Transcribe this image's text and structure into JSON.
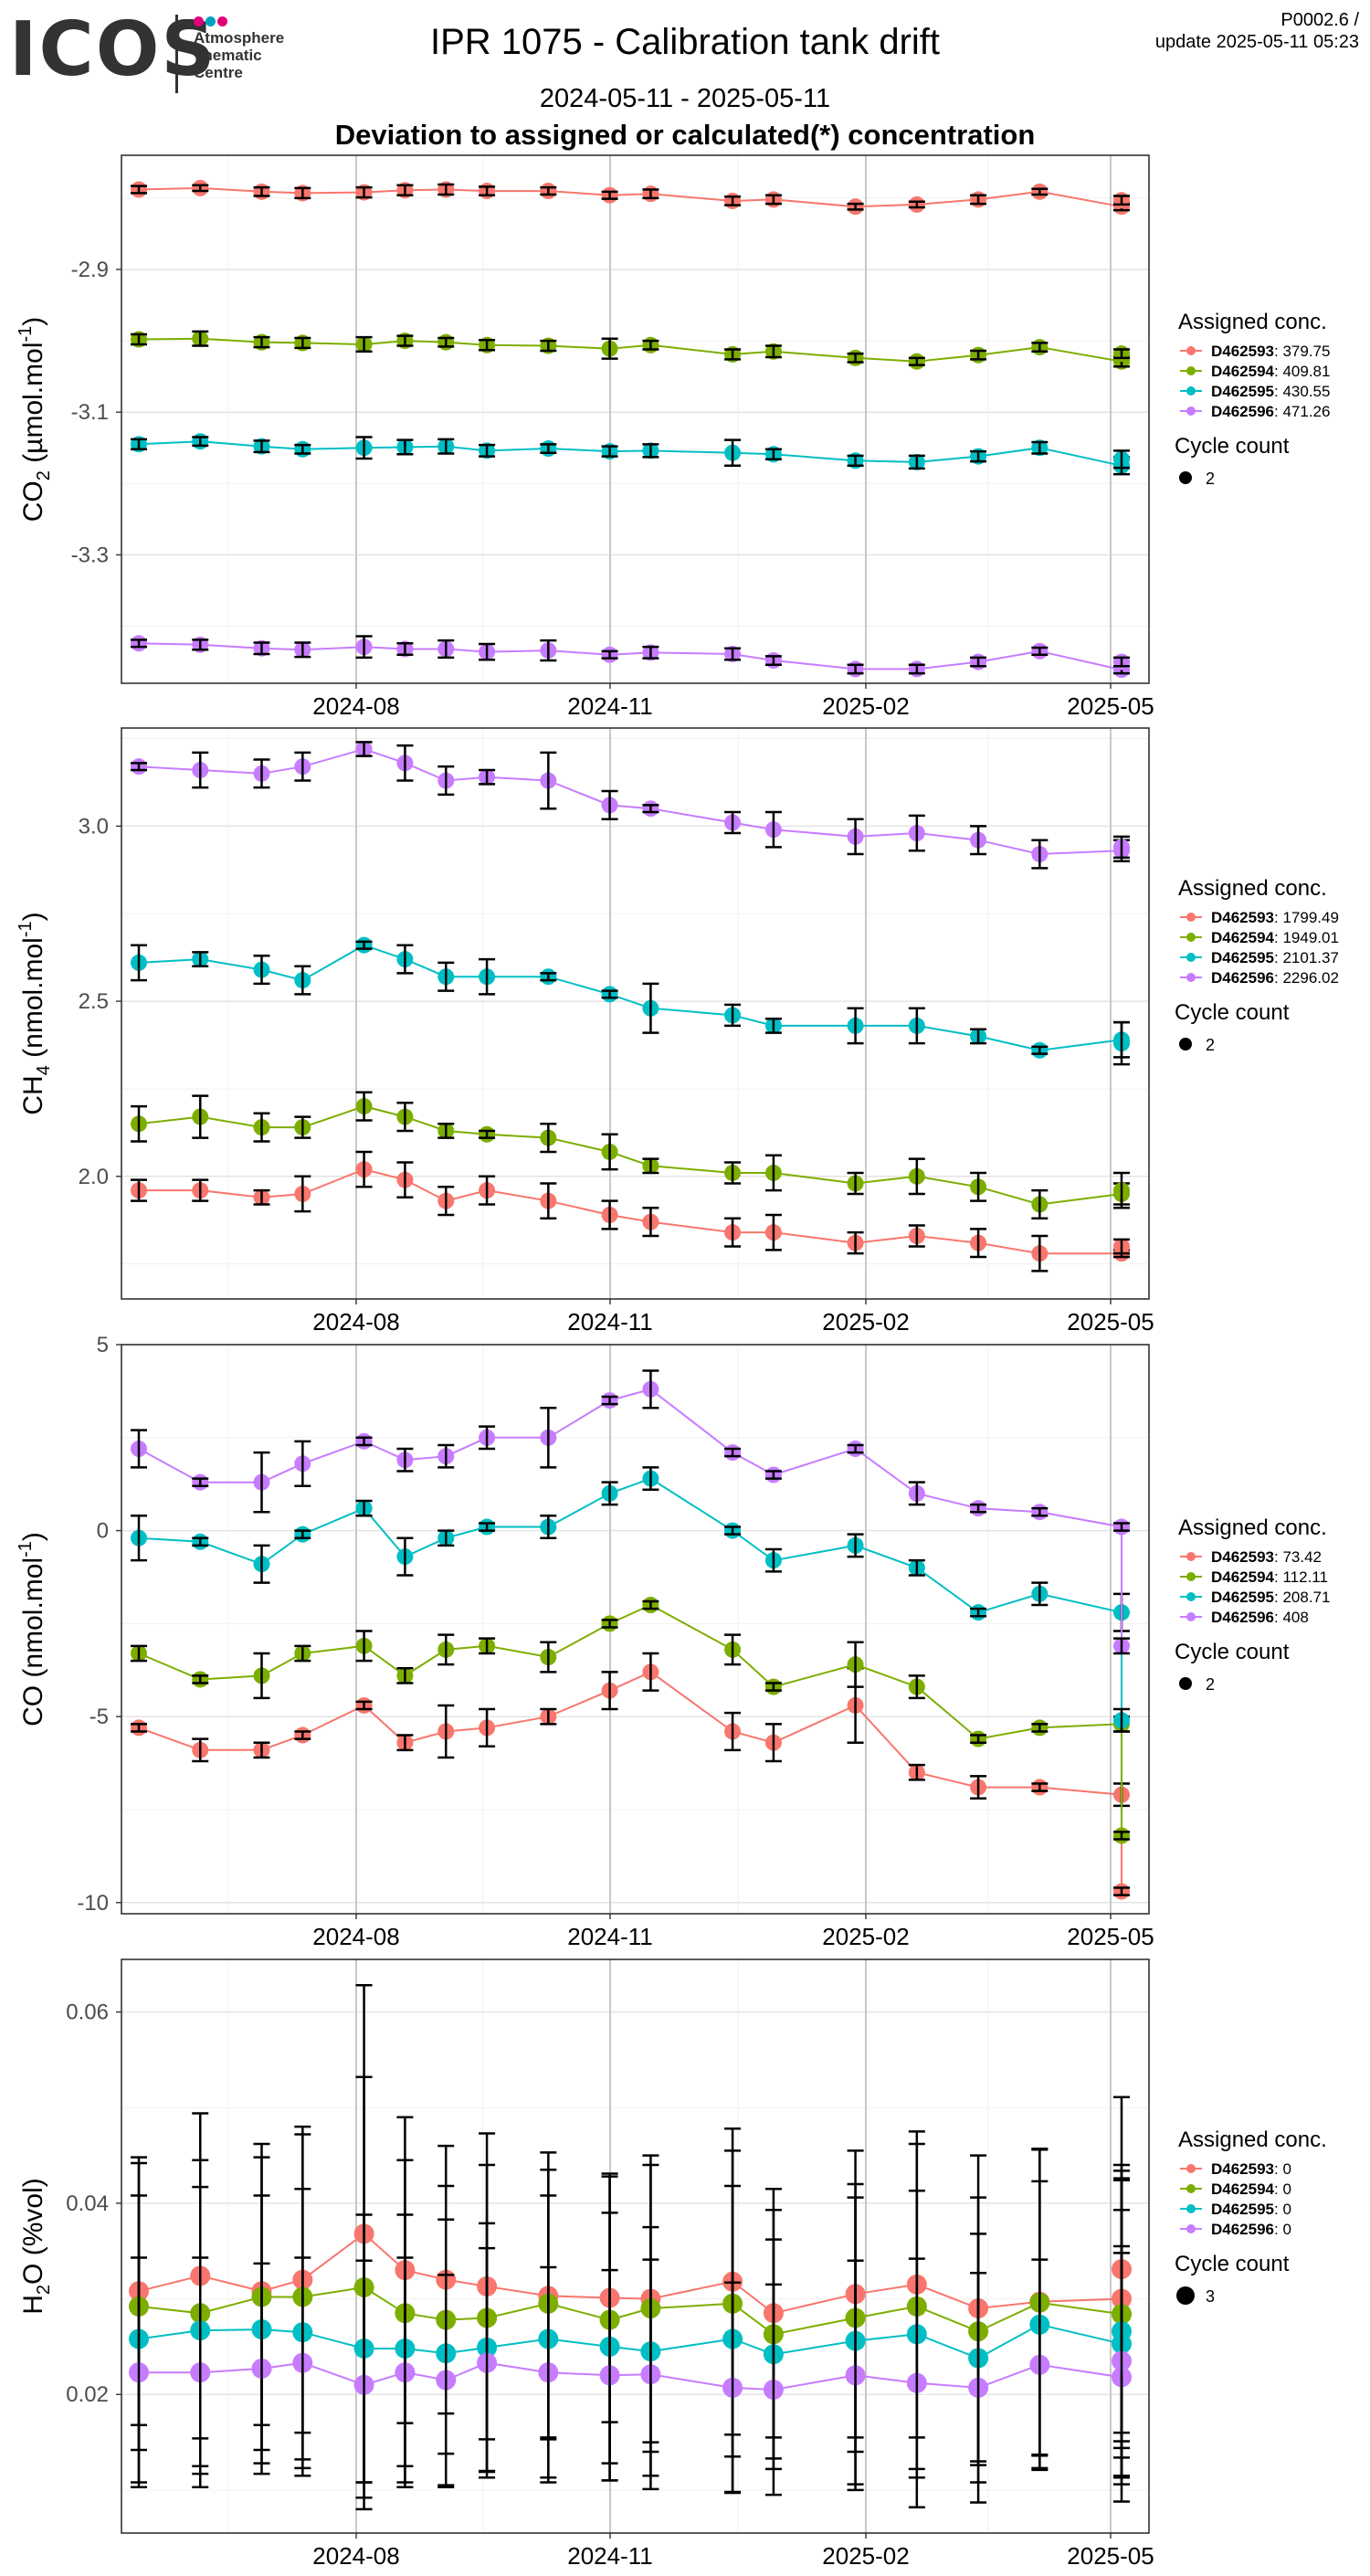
{
  "header": {
    "logo_text": "ICOS",
    "logo_subtitle": "Atmosphere\nThematic\nCentre",
    "logo_dot_colors": [
      "#e0007a",
      "#00a0c6",
      "#e0007a"
    ],
    "title": "IPR 1075 - Calibration tank drift",
    "date_range": "2024-05-11 - 2025-05-11",
    "section_title": "Deviation to assigned or calculated(*) concentration",
    "code_line1": "P0002.6 /",
    "code_line2": "update  2025-05-11 05:23"
  },
  "series_colors": [
    "#F8766D",
    "#7CAE00",
    "#00BFC4",
    "#C77CFF"
  ],
  "chart_data": [
    {
      "type": "line",
      "ylabel_main": "CO",
      "ylabel_sub": "2",
      "ylabel_unit": " (µmol.mol",
      "ylabel_sup": "-1",
      "ylabel_end": ")",
      "x_ticks": [
        "2024-08",
        "2024-11",
        "2025-02",
        "2025-05"
      ],
      "y_ticks": [
        -3.3,
        -3.1,
        -2.9
      ],
      "y_tick_labels": [
        "-3.3",
        "-3.1",
        "-2.9"
      ],
      "ylim": [
        -3.48,
        -2.74
      ],
      "grid": true,
      "legend_position": "right",
      "legend": {
        "title": "Assigned conc.",
        "entries": [
          {
            "id": "D462593",
            "value": ": 379.75"
          },
          {
            "id": "D462594",
            "value": ": 409.81"
          },
          {
            "id": "D462595",
            "value": ": 430.55"
          },
          {
            "id": "D462596",
            "value": ": 471.26"
          }
        ],
        "size_title": "Cycle count",
        "size_value": "2"
      },
      "x": [
        0.0,
        0.6,
        1.2,
        1.6,
        2.2,
        2.6,
        3.0,
        3.4,
        4.0,
        4.6,
        5.0,
        5.8,
        6.2,
        7.0,
        7.6,
        8.2,
        8.8,
        9.6,
        9.6
      ],
      "series": [
        {
          "id": "D462593",
          "values": [
            -2.788,
            -2.786,
            -2.791,
            -2.793,
            -2.792,
            -2.789,
            -2.788,
            -2.79,
            -2.79,
            -2.796,
            -2.794,
            -2.804,
            -2.802,
            -2.812,
            -2.809,
            -2.802,
            -2.791,
            -2.812,
            -2.803
          ],
          "errors": [
            0.005,
            0.004,
            0.006,
            0.007,
            0.007,
            0.007,
            0.007,
            0.006,
            0.005,
            0.005,
            0.006,
            0.006,
            0.006,
            0.004,
            0.004,
            0.006,
            0.004,
            0.005,
            0.006
          ]
        },
        {
          "id": "D462594",
          "values": [
            -2.998,
            -2.997,
            -3.002,
            -3.003,
            -3.005,
            -3.0,
            -3.002,
            -3.006,
            -3.007,
            -3.011,
            -3.006,
            -3.019,
            -3.015,
            -3.024,
            -3.029,
            -3.02,
            -3.009,
            -3.029,
            -3.018
          ],
          "errors": [
            0.007,
            0.01,
            0.007,
            0.007,
            0.01,
            0.007,
            0.006,
            0.007,
            0.007,
            0.014,
            0.006,
            0.007,
            0.008,
            0.006,
            0.005,
            0.006,
            0.006,
            0.007,
            0.006
          ]
        },
        {
          "id": "D462595",
          "values": [
            -3.145,
            -3.141,
            -3.148,
            -3.152,
            -3.15,
            -3.149,
            -3.148,
            -3.154,
            -3.151,
            -3.155,
            -3.154,
            -3.157,
            -3.159,
            -3.168,
            -3.17,
            -3.162,
            -3.15,
            -3.175,
            -3.166
          ],
          "errors": [
            0.007,
            0.006,
            0.008,
            0.006,
            0.015,
            0.01,
            0.01,
            0.008,
            0.006,
            0.007,
            0.009,
            0.018,
            0.007,
            0.007,
            0.009,
            0.007,
            0.008,
            0.012,
            0.012
          ]
        },
        {
          "id": "D462596",
          "values": [
            -3.424,
            -3.426,
            -3.431,
            -3.433,
            -3.429,
            -3.432,
            -3.432,
            -3.436,
            -3.434,
            -3.44,
            -3.437,
            -3.439,
            -3.448,
            -3.46,
            -3.46,
            -3.45,
            -3.435,
            -3.461,
            -3.45
          ],
          "errors": [
            0.005,
            0.007,
            0.008,
            0.01,
            0.015,
            0.008,
            0.012,
            0.011,
            0.014,
            0.005,
            0.008,
            0.008,
            0.006,
            0.006,
            0.006,
            0.006,
            0.005,
            0.005,
            0.006
          ]
        }
      ]
    },
    {
      "type": "line",
      "ylabel_main": "CH",
      "ylabel_sub": "4",
      "ylabel_unit": " (nmol.mol",
      "ylabel_sup": "-1",
      "ylabel_end": ")",
      "x_ticks": [
        "2024-08",
        "2024-11",
        "2025-02",
        "2025-05"
      ],
      "y_ticks": [
        2.0,
        2.5,
        3.0
      ],
      "y_tick_labels": [
        "2.0",
        "2.5",
        "3.0"
      ],
      "ylim": [
        1.65,
        3.28
      ],
      "grid": true,
      "legend_position": "right",
      "legend": {
        "title": "Assigned conc.",
        "entries": [
          {
            "id": "D462593",
            "value": ": 1799.49"
          },
          {
            "id": "D462594",
            "value": ": 1949.01"
          },
          {
            "id": "D462595",
            "value": ": 2101.37"
          },
          {
            "id": "D462596",
            "value": ": 2296.02"
          }
        ],
        "size_title": "Cycle count",
        "size_value": "2"
      },
      "x": [
        0.0,
        0.6,
        1.2,
        1.6,
        2.2,
        2.6,
        3.0,
        3.4,
        4.0,
        4.6,
        5.0,
        5.8,
        6.2,
        7.0,
        7.6,
        8.2,
        8.8,
        9.6,
        9.6
      ],
      "series": [
        {
          "id": "D462593",
          "values": [
            1.96,
            1.96,
            1.94,
            1.95,
            2.02,
            1.99,
            1.93,
            1.96,
            1.93,
            1.89,
            1.87,
            1.84,
            1.84,
            1.81,
            1.83,
            1.81,
            1.78,
            1.78,
            1.8
          ],
          "errors": [
            0.03,
            0.03,
            0.02,
            0.05,
            0.05,
            0.05,
            0.04,
            0.04,
            0.05,
            0.04,
            0.04,
            0.04,
            0.05,
            0.03,
            0.03,
            0.04,
            0.05,
            0.01,
            0.02
          ]
        },
        {
          "id": "D462594",
          "values": [
            2.15,
            2.17,
            2.14,
            2.14,
            2.2,
            2.17,
            2.13,
            2.12,
            2.11,
            2.07,
            2.03,
            2.01,
            2.01,
            1.98,
            2.0,
            1.97,
            1.92,
            1.95,
            1.96
          ],
          "errors": [
            0.05,
            0.06,
            0.04,
            0.03,
            0.04,
            0.04,
            0.02,
            0.01,
            0.04,
            0.05,
            0.02,
            0.03,
            0.05,
            0.03,
            0.05,
            0.04,
            0.04,
            0.03,
            0.05
          ]
        },
        {
          "id": "D462595",
          "values": [
            2.61,
            2.62,
            2.59,
            2.56,
            2.66,
            2.62,
            2.57,
            2.57,
            2.57,
            2.52,
            2.48,
            2.46,
            2.43,
            2.43,
            2.43,
            2.4,
            2.36,
            2.39,
            2.38
          ],
          "errors": [
            0.05,
            0.02,
            0.04,
            0.04,
            0.01,
            0.04,
            0.04,
            0.05,
            0.01,
            0.01,
            0.07,
            0.03,
            0.02,
            0.05,
            0.05,
            0.02,
            0.01,
            0.05,
            0.06
          ]
        },
        {
          "id": "D462596",
          "values": [
            3.17,
            3.16,
            3.15,
            3.17,
            3.22,
            3.18,
            3.13,
            3.14,
            3.13,
            3.06,
            3.05,
            3.01,
            2.99,
            2.97,
            2.98,
            2.96,
            2.92,
            2.93,
            2.94
          ],
          "errors": [
            0.01,
            0.05,
            0.04,
            0.04,
            0.02,
            0.05,
            0.04,
            0.02,
            0.08,
            0.04,
            0.01,
            0.03,
            0.05,
            0.05,
            0.05,
            0.04,
            0.04,
            0.03,
            0.03
          ]
        }
      ]
    },
    {
      "type": "line",
      "ylabel_main": "CO",
      "ylabel_sub": "",
      "ylabel_unit": " (nmol.mol",
      "ylabel_sup": "-1",
      "ylabel_end": ")",
      "x_ticks": [
        "2024-08",
        "2024-11",
        "2025-02",
        "2025-05"
      ],
      "y_ticks": [
        -10,
        -5,
        0,
        5
      ],
      "y_tick_labels": [
        "-10",
        "-5",
        "0",
        "5"
      ],
      "ylim": [
        -10.3,
        5.0
      ],
      "grid": true,
      "legend_position": "right",
      "legend": {
        "title": "Assigned conc.",
        "entries": [
          {
            "id": "D462593",
            "value": ": 73.42"
          },
          {
            "id": "D462594",
            "value": ": 112.11"
          },
          {
            "id": "D462595",
            "value": ": 208.71"
          },
          {
            "id": "D462596",
            "value": ": 408"
          }
        ],
        "size_title": "Cycle count",
        "size_value": "2"
      },
      "x": [
        0.0,
        0.6,
        1.2,
        1.6,
        2.2,
        2.6,
        3.0,
        3.4,
        4.0,
        4.6,
        5.0,
        5.8,
        6.2,
        7.0,
        7.6,
        8.2,
        8.8,
        9.6,
        9.6
      ],
      "series": [
        {
          "id": "D462593",
          "values": [
            -5.3,
            -5.9,
            -5.9,
            -5.5,
            -4.7,
            -5.7,
            -5.4,
            -5.3,
            -5.0,
            -4.3,
            -3.8,
            -5.4,
            -5.7,
            -4.7,
            -6.5,
            -6.9,
            -6.9,
            -7.1,
            -9.7
          ],
          "errors": [
            0.1,
            0.3,
            0.2,
            0.1,
            0.1,
            0.2,
            0.7,
            0.5,
            0.2,
            0.5,
            0.5,
            0.5,
            0.5,
            1.0,
            0.2,
            0.3,
            0.1,
            0.3,
            0.1
          ]
        },
        {
          "id": "D462594",
          "values": [
            -3.3,
            -4.0,
            -3.9,
            -3.3,
            -3.1,
            -3.9,
            -3.2,
            -3.1,
            -3.4,
            -2.5,
            -2.0,
            -3.2,
            -4.2,
            -3.6,
            -4.2,
            -5.6,
            -5.3,
            -5.2,
            -8.2
          ],
          "errors": [
            0.2,
            0.1,
            0.6,
            0.2,
            0.4,
            0.2,
            0.4,
            0.2,
            0.4,
            0.1,
            0.1,
            0.4,
            0.1,
            0.6,
            0.3,
            0.1,
            0.1,
            0.2,
            0.1
          ]
        },
        {
          "id": "D462595",
          "values": [
            -0.2,
            -0.3,
            -0.9,
            -0.1,
            0.6,
            -0.7,
            -0.2,
            0.1,
            0.1,
            1.0,
            1.4,
            0.0,
            -0.8,
            -0.4,
            -1.0,
            -2.2,
            -1.7,
            -2.2,
            -5.1
          ],
          "errors": [
            0.6,
            0.1,
            0.5,
            0.1,
            0.2,
            0.5,
            0.2,
            0.1,
            0.3,
            0.3,
            0.3,
            0.1,
            0.3,
            0.3,
            0.2,
            0.1,
            0.3,
            0.5,
            0.3
          ]
        },
        {
          "id": "D462596",
          "values": [
            2.2,
            1.3,
            1.3,
            1.8,
            2.4,
            1.9,
            2.0,
            2.5,
            2.5,
            3.5,
            3.8,
            2.1,
            1.5,
            2.2,
            1.0,
            0.6,
            0.5,
            0.1,
            -3.1
          ],
          "errors": [
            0.5,
            0.1,
            0.8,
            0.6,
            0.1,
            0.3,
            0.3,
            0.3,
            0.8,
            0.1,
            0.5,
            0.1,
            0.1,
            0.1,
            0.3,
            0.1,
            0.1,
            0.1,
            0.2
          ]
        }
      ]
    },
    {
      "type": "line",
      "ylabel_main": "H",
      "ylabel_sub": "2",
      "ylabel_unit": "O (%vol)",
      "ylabel_sup": "",
      "ylabel_end": "",
      "x_ticks": [
        "2024-08",
        "2024-11",
        "2025-02",
        "2025-05"
      ],
      "y_ticks": [
        0.02,
        0.04,
        0.06
      ],
      "y_tick_labels": [
        "0.02",
        "0.04",
        "0.06"
      ],
      "ylim": [
        0.0055,
        0.0655
      ],
      "grid": true,
      "legend_position": "right",
      "legend": {
        "title": "Assigned conc.",
        "entries": [
          {
            "id": "D462593",
            "value": ": 0"
          },
          {
            "id": "D462594",
            "value": ": 0"
          },
          {
            "id": "D462595",
            "value": ": 0"
          },
          {
            "id": "D462596",
            "value": ": 0"
          }
        ],
        "size_title": "Cycle count",
        "size_value": "3"
      },
      "x": [
        0.0,
        0.6,
        1.2,
        1.6,
        2.2,
        2.6,
        3.0,
        3.4,
        4.0,
        4.6,
        5.0,
        5.8,
        6.2,
        7.0,
        7.6,
        8.2,
        8.8,
        9.6,
        9.6
      ],
      "series": [
        {
          "id": "D462593",
          "values": [
            0.0308,
            0.0324,
            0.0308,
            0.032,
            0.0368,
            0.033,
            0.032,
            0.0313,
            0.0303,
            0.0301,
            0.03,
            0.0318,
            0.0285,
            0.0305,
            0.0315,
            0.029,
            0.0297,
            0.03,
            0.0331
          ],
          "errors": [
            0.014,
            0.017,
            0.014,
            0.016,
            0.026,
            0.016,
            0.014,
            0.016,
            0.015,
            0.013,
            0.015,
            0.016,
            0.013,
            0.015,
            0.016,
            0.016,
            0.016,
            0.014,
            0.018
          ]
        },
        {
          "id": "D462594",
          "values": [
            0.0292,
            0.0285,
            0.0302,
            0.0302,
            0.0312,
            0.0285,
            0.0278,
            0.028,
            0.0295,
            0.0278,
            0.029,
            0.0295,
            0.0263,
            0.028,
            0.0292,
            0.0266,
            0.0296,
            0.0284,
            0.0284
          ],
          "errors": [
            0.015,
            0.016,
            0.016,
            0.017,
            0.022,
            0.016,
            0.014,
            0.016,
            0.014,
            0.015,
            0.015,
            0.016,
            0.013,
            0.014,
            0.017,
            0.014,
            0.016,
            0.014,
            0.015
          ]
        },
        {
          "id": "D462595",
          "values": [
            0.0258,
            0.0267,
            0.0268,
            0.0265,
            0.0248,
            0.0248,
            0.0243,
            0.0249,
            0.0258,
            0.025,
            0.0245,
            0.0258,
            0.0242,
            0.0256,
            0.0263,
            0.0238,
            0.0273,
            0.0253,
            0.0266
          ],
          "errors": [
            0.015,
            0.015,
            0.014,
            0.015,
            0.014,
            0.014,
            0.014,
            0.013,
            0.015,
            0.014,
            0.013,
            0.016,
            0.012,
            0.015,
            0.015,
            0.013,
            0.015,
            0.014,
            0.016
          ]
        },
        {
          "id": "D462596",
          "values": [
            0.0223,
            0.0223,
            0.0227,
            0.0233,
            0.021,
            0.0223,
            0.0215,
            0.0233,
            0.0223,
            0.022,
            0.0221,
            0.0207,
            0.0205,
            0.022,
            0.0212,
            0.0207,
            0.0231,
            0.0218,
            0.0235
          ],
          "errors": [
            0.012,
            0.012,
            0.011,
            0.011,
            0.013,
            0.012,
            0.011,
            0.012,
            0.011,
            0.011,
            0.012,
            0.011,
            0.011,
            0.012,
            0.013,
            0.012,
            0.011,
            0.013,
            0.012
          ]
        }
      ]
    }
  ]
}
